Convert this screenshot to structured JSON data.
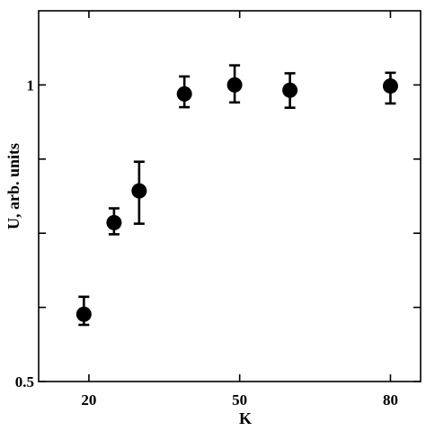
{
  "chart_data": {
    "type": "scatter",
    "xlabel": "K",
    "ylabel": "U, arb. units",
    "xlim": [
      10,
      86
    ],
    "ylim": [
      0.5,
      1.2
    ],
    "y_scale": "linear",
    "grid": false,
    "legend": "none",
    "x_ticks": [
      {
        "value": 20,
        "label": "20"
      },
      {
        "value": 50,
        "label": "50"
      },
      {
        "value": 80,
        "label": "80"
      }
    ],
    "y_ticks": [
      {
        "value": 0.5,
        "label": "0.5"
      },
      {
        "value": 0.64,
        "label": ""
      },
      {
        "value": 0.78,
        "label": ""
      },
      {
        "value": 0.92,
        "label": ""
      },
      {
        "value": 1.06,
        "label": "1"
      }
    ],
    "points": [
      {
        "x": 19,
        "y": 0.627,
        "err_low": 0.02,
        "err_high": 0.033
      },
      {
        "x": 25,
        "y": 0.8,
        "err_low": 0.022,
        "err_high": 0.027
      },
      {
        "x": 30,
        "y": 0.86,
        "err_low": 0.062,
        "err_high": 0.055
      },
      {
        "x": 39,
        "y": 1.043,
        "err_low": 0.025,
        "err_high": 0.033
      },
      {
        "x": 49,
        "y": 1.06,
        "err_low": 0.033,
        "err_high": 0.037
      },
      {
        "x": 60,
        "y": 1.05,
        "err_low": 0.033,
        "err_high": 0.032
      },
      {
        "x": 80,
        "y": 1.058,
        "err_low": 0.033,
        "err_high": 0.025
      }
    ],
    "colors": {
      "marker": "#000000",
      "axis": "#000000"
    }
  }
}
